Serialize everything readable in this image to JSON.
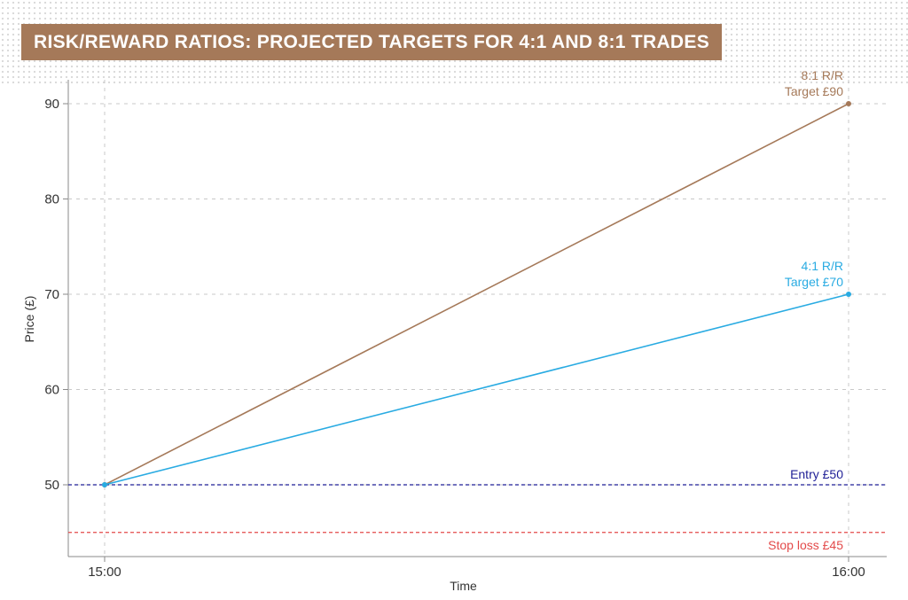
{
  "title": "RISK/REWARD RATIOS: PROJECTED TARGETS FOR 4:1 AND 8:1 TRADES",
  "chart_data": {
    "type": "line",
    "title": "RISK/REWARD RATIOS: PROJECTED TARGETS FOR 4:1 AND 8:1 TRADES",
    "xlabel": "Time",
    "ylabel": "Price (£)",
    "x": [
      "15:00",
      "16:00"
    ],
    "x_ticks": [
      "15:00",
      "16:00"
    ],
    "y_ticks": [
      50,
      60,
      70,
      80,
      90
    ],
    "ylim": [
      43.7,
      92.8
    ],
    "grid": true,
    "series": [
      {
        "name": "8:1 R/R",
        "x": [
          "15:00",
          "16:00"
        ],
        "values": [
          50,
          90
        ],
        "color": "#a57959"
      },
      {
        "name": "4:1 R/R",
        "x": [
          "15:00",
          "16:00"
        ],
        "values": [
          50,
          70
        ],
        "color": "#29abe2"
      }
    ],
    "reference_lines": [
      {
        "label": "Entry £50",
        "value": 50,
        "color": "#1f1f96"
      },
      {
        "label": "Stop loss £45",
        "value": 45,
        "color": "#e34a4a"
      }
    ],
    "annotations": [
      {
        "line1": "8:1 R/R",
        "line2": "Target £90",
        "color": "#a57959"
      },
      {
        "line1": "4:1 R/R",
        "line2": "Target £70",
        "color": "#29abe2"
      }
    ]
  }
}
